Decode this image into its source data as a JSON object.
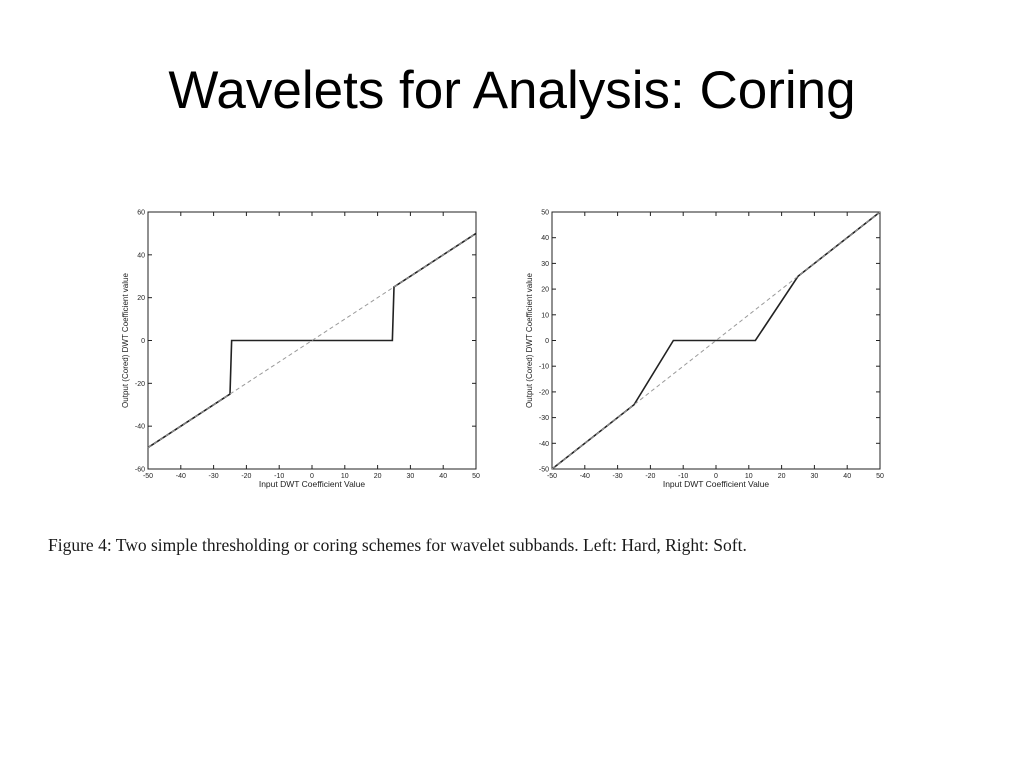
{
  "slide": {
    "title": "Wavelets for Analysis: Coring",
    "caption": "Figure 4:  Two simple thresholding or coring schemes for wavelet subbands.  Left:  Hard, Right:  Soft."
  },
  "chart_data": [
    {
      "type": "line",
      "xlabel": "Input DWT Coefficient Value",
      "ylabel": "Output (Cored) DWT Coefficient value",
      "xlim": [
        -50,
        50
      ],
      "ylim": [
        -60,
        60
      ],
      "xticks": [
        -50,
        -40,
        -30,
        -20,
        -10,
        0,
        10,
        20,
        30,
        40,
        50
      ],
      "yticks": [
        -60,
        -40,
        -20,
        0,
        20,
        40,
        60
      ],
      "grid": false,
      "series": [
        {
          "style": "solid",
          "color": "#222222",
          "x": [
            -50,
            -25,
            -24.5,
            24.5,
            25,
            50
          ],
          "y": [
            -50,
            -25,
            0,
            0,
            25,
            50
          ]
        },
        {
          "style": "dashed",
          "color": "#9a9a9a",
          "x": [
            -50,
            50
          ],
          "y": [
            -50,
            50
          ]
        }
      ]
    },
    {
      "type": "line",
      "xlabel": "Input DWT Coefficient Value",
      "ylabel": "Output (Cored) DWT Coefficient value",
      "xlim": [
        -50,
        50
      ],
      "ylim": [
        -50,
        50
      ],
      "xticks": [
        -50,
        -40,
        -30,
        -20,
        -10,
        0,
        10,
        20,
        30,
        40,
        50
      ],
      "yticks": [
        -50,
        -40,
        -30,
        -20,
        -10,
        0,
        10,
        20,
        30,
        40,
        50
      ],
      "grid": false,
      "series": [
        {
          "style": "solid",
          "color": "#222222",
          "x": [
            -50,
            -25,
            -13,
            12,
            25,
            50
          ],
          "y": [
            -50,
            -25,
            0,
            0,
            25,
            50
          ]
        },
        {
          "style": "dashed",
          "color": "#9a9a9a",
          "x": [
            -50,
            50
          ],
          "y": [
            -50,
            50
          ]
        }
      ]
    }
  ]
}
